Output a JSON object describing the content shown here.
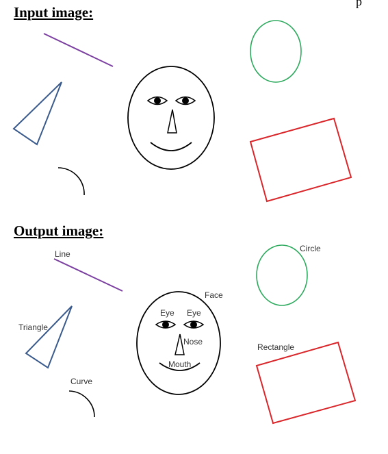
{
  "headings": {
    "input": "Input image:",
    "output": "Output image:"
  },
  "top_fragment": "p",
  "labels": {
    "line": "Line",
    "circle": "Circle",
    "face": "Face",
    "eye_left": "Eye",
    "eye_right": "Eye",
    "triangle": "Triangle",
    "nose": "Nose",
    "rectangle": "Rectangle",
    "mouth": "Mouth",
    "curve": "Curve"
  },
  "colors": {
    "line": "#7B3FA0",
    "triangle": "#3A5A8C",
    "circle": "#2EAA5E",
    "rectangle": "#D9262A",
    "face": "#000000"
  }
}
